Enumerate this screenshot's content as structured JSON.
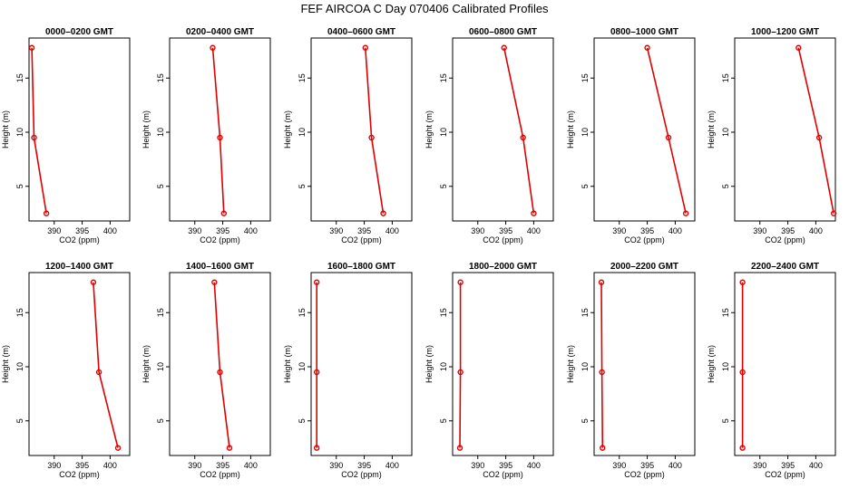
{
  "figure": {
    "title": "FEF AIRCOA C  Day 070406  Calibrated Profiles"
  },
  "chart_data": {
    "type": "line",
    "title": "FEF AIRCOA C  Day 070406  Calibrated Profiles",
    "xlabel": "CO2 (ppm)",
    "ylabel": "Height (m)",
    "xlim": [
      385.5,
      403.5
    ],
    "ylim": [
      1.8,
      18.7
    ],
    "xticks": [
      390,
      395,
      400
    ],
    "yticks": [
      5,
      10,
      15
    ],
    "grid": false,
    "line_color": "#e00000",
    "panels": [
      {
        "title": "0000–0200 GMT",
        "x": [
          388.6,
          386.4,
          386.0
        ],
        "y": [
          2.5,
          9.5,
          17.8
        ]
      },
      {
        "title": "0200–0400 GMT",
        "x": [
          395.2,
          394.5,
          393.2
        ],
        "y": [
          2.5,
          9.5,
          17.8
        ]
      },
      {
        "title": "0400–0600 GMT",
        "x": [
          398.4,
          396.3,
          395.2
        ],
        "y": [
          2.5,
          9.5,
          17.8
        ]
      },
      {
        "title": "0600–0800 GMT",
        "x": [
          400.0,
          398.1,
          394.7
        ],
        "y": [
          2.5,
          9.5,
          17.8
        ]
      },
      {
        "title": "0800–1000 GMT",
        "x": [
          401.9,
          398.8,
          395.0
        ],
        "y": [
          2.5,
          9.5,
          17.8
        ]
      },
      {
        "title": "1000–1200 GMT",
        "x": [
          403.2,
          400.6,
          396.9
        ],
        "y": [
          2.5,
          9.5,
          17.8
        ]
      },
      {
        "title": "1200–1400 GMT",
        "x": [
          401.4,
          398.0,
          397.0
        ],
        "y": [
          2.5,
          9.5,
          17.8
        ]
      },
      {
        "title": "1400–1600 GMT",
        "x": [
          396.2,
          394.5,
          393.5
        ],
        "y": [
          2.5,
          9.5,
          17.8
        ]
      },
      {
        "title": "1600–1800 GMT",
        "x": [
          386.5,
          386.5,
          386.5
        ],
        "y": [
          2.5,
          9.5,
          17.8
        ]
      },
      {
        "title": "1800–2000 GMT",
        "x": [
          386.8,
          386.9,
          386.9
        ],
        "y": [
          2.5,
          9.5,
          17.8
        ]
      },
      {
        "title": "2000–2200 GMT",
        "x": [
          387.0,
          386.9,
          386.8
        ],
        "y": [
          2.5,
          9.5,
          17.8
        ]
      },
      {
        "title": "2200–2400 GMT",
        "x": [
          386.9,
          386.9,
          386.9
        ],
        "y": [
          2.5,
          9.5,
          17.8
        ]
      }
    ]
  }
}
